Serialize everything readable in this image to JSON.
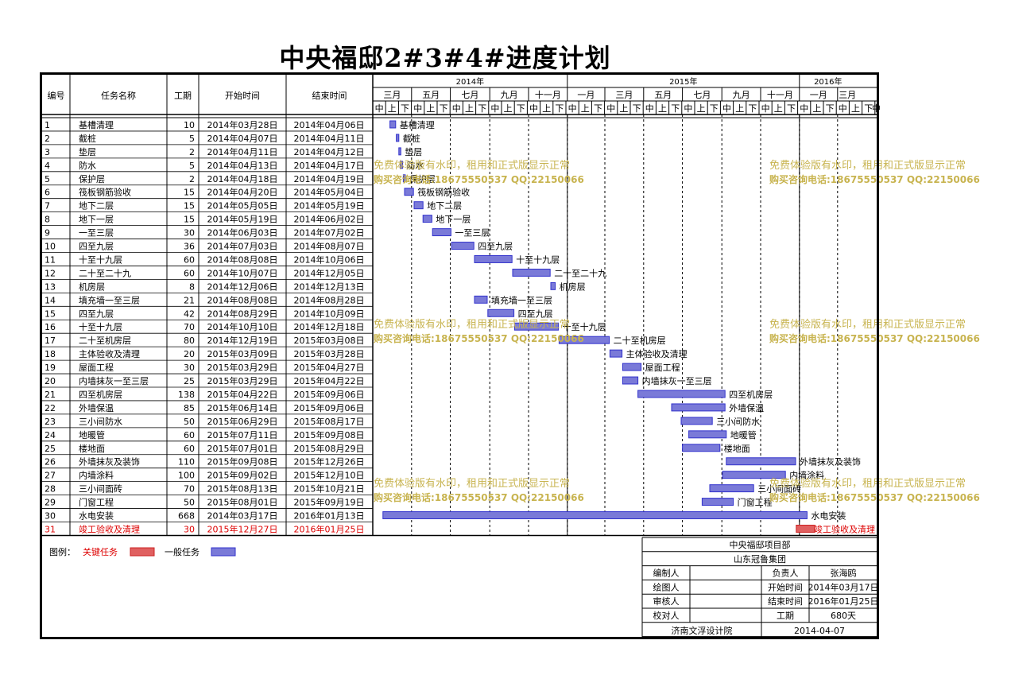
{
  "title": "中央福邸2#3#4#进度计划",
  "headers": {
    "id": "编号",
    "name": "任务名称",
    "dur": "工期",
    "start": "开始时间",
    "end": "结束时间"
  },
  "years": [
    "2014年",
    "2015年",
    "2016年"
  ],
  "months": [
    "三月",
    "五月",
    "七月",
    "九月",
    "十一月",
    "一月",
    "三月",
    "五月",
    "七月",
    "九月",
    "十一月",
    "一月",
    "三月"
  ],
  "halves": [
    "中",
    "上",
    "下"
  ],
  "chart_data": {
    "type": "gantt",
    "x_axis": {
      "type": "date",
      "start": "2014-03-01",
      "end": "2016-03-31"
    },
    "tasks": [
      {
        "id": "1",
        "name": "基槽清理",
        "duration": 10,
        "start": "2014年03月28日",
        "end": "2014年04月06日",
        "s": "2014-03-28",
        "e": "2014-04-06",
        "critical": false
      },
      {
        "id": "2",
        "name": "截桩",
        "duration": 5,
        "start": "2014年04月07日",
        "end": "2014年04月11日",
        "s": "2014-04-07",
        "e": "2014-04-11",
        "critical": false
      },
      {
        "id": "3",
        "name": "垫层",
        "duration": 2,
        "start": "2014年04月11日",
        "end": "2014年04月12日",
        "s": "2014-04-11",
        "e": "2014-04-12",
        "critical": false
      },
      {
        "id": "4",
        "name": "防水",
        "duration": 5,
        "start": "2014年04月13日",
        "end": "2014年04月17日",
        "s": "2014-04-13",
        "e": "2014-04-17",
        "critical": false
      },
      {
        "id": "5",
        "name": "保护层",
        "duration": 2,
        "start": "2014年04月18日",
        "end": "2014年04月19日",
        "s": "2014-04-18",
        "e": "2014-04-19",
        "critical": false
      },
      {
        "id": "6",
        "name": "筏板钢筋验收",
        "duration": 15,
        "start": "2014年04月20日",
        "end": "2014年05月04日",
        "s": "2014-04-20",
        "e": "2014-05-04",
        "critical": false
      },
      {
        "id": "7",
        "name": "地下二层",
        "duration": 15,
        "start": "2014年05月05日",
        "end": "2014年05月19日",
        "s": "2014-05-05",
        "e": "2014-05-19",
        "critical": false
      },
      {
        "id": "8",
        "name": "地下一层",
        "duration": 15,
        "start": "2014年05月19日",
        "end": "2014年06月02日",
        "s": "2014-05-19",
        "e": "2014-06-02",
        "critical": false
      },
      {
        "id": "9",
        "name": "一至三层",
        "duration": 30,
        "start": "2014年06月03日",
        "end": "2014年07月02日",
        "s": "2014-06-03",
        "e": "2014-07-02",
        "critical": false
      },
      {
        "id": "10",
        "name": "四至九层",
        "duration": 36,
        "start": "2014年07月03日",
        "end": "2014年08月07日",
        "s": "2014-07-03",
        "e": "2014-08-07",
        "critical": false
      },
      {
        "id": "11",
        "name": "十至十九层",
        "duration": 60,
        "start": "2014年08月08日",
        "end": "2014年10月06日",
        "s": "2014-08-08",
        "e": "2014-10-06",
        "critical": false
      },
      {
        "id": "12",
        "name": "二十至二十九",
        "duration": 60,
        "start": "2014年10月07日",
        "end": "2014年12月05日",
        "s": "2014-10-07",
        "e": "2014-12-05",
        "critical": false
      },
      {
        "id": "13",
        "name": "机房层",
        "duration": 8,
        "start": "2014年12月06日",
        "end": "2014年12月13日",
        "s": "2014-12-06",
        "e": "2014-12-13",
        "critical": false
      },
      {
        "id": "14",
        "name": "填充墙一至三层",
        "duration": 21,
        "start": "2014年08月08日",
        "end": "2014年08月28日",
        "s": "2014-08-08",
        "e": "2014-08-28",
        "critical": false
      },
      {
        "id": "15",
        "name": "四至九层",
        "duration": 42,
        "start": "2014年08月29日",
        "end": "2014年10月09日",
        "s": "2014-08-29",
        "e": "2014-10-09",
        "critical": false
      },
      {
        "id": "16",
        "name": "十至十九层",
        "duration": 70,
        "start": "2014年10月10日",
        "end": "2014年12月18日",
        "s": "2014-10-10",
        "e": "2014-12-18",
        "critical": false
      },
      {
        "id": "17",
        "name": "二十至机房层",
        "duration": 80,
        "start": "2014年12月19日",
        "end": "2015年03月08日",
        "s": "2014-12-19",
        "e": "2015-03-08",
        "critical": false
      },
      {
        "id": "18",
        "name": "主体验收及清理",
        "duration": 20,
        "start": "2015年03月09日",
        "end": "2015年03月28日",
        "s": "2015-03-09",
        "e": "2015-03-28",
        "critical": false
      },
      {
        "id": "19",
        "name": "屋面工程",
        "duration": 30,
        "start": "2015年03月29日",
        "end": "2015年04月27日",
        "s": "2015-03-29",
        "e": "2015-04-27",
        "critical": false
      },
      {
        "id": "20",
        "name": "内墙抹灰一至三层",
        "duration": 25,
        "start": "2015年03月29日",
        "end": "2015年04月22日",
        "s": "2015-03-29",
        "e": "2015-04-22",
        "critical": false
      },
      {
        "id": "21",
        "name": "四至机房层",
        "duration": 138,
        "start": "2015年04月22日",
        "end": "2015年09月06日",
        "s": "2015-04-22",
        "e": "2015-09-06",
        "critical": false
      },
      {
        "id": "22",
        "name": "外墙保温",
        "duration": 85,
        "start": "2015年06月14日",
        "end": "2015年09月06日",
        "s": "2015-06-14",
        "e": "2015-09-06",
        "critical": false
      },
      {
        "id": "23",
        "name": "三小间防水",
        "duration": 50,
        "start": "2015年06月29日",
        "end": "2015年08月17日",
        "s": "2015-06-29",
        "e": "2015-08-17",
        "critical": false
      },
      {
        "id": "24",
        "name": "地暖管",
        "duration": 60,
        "start": "2015年07月11日",
        "end": "2015年09月08日",
        "s": "2015-07-11",
        "e": "2015-09-08",
        "critical": false
      },
      {
        "id": "25",
        "name": "楼地面",
        "duration": 60,
        "start": "2015年07月01日",
        "end": "2015年08月29日",
        "s": "2015-07-01",
        "e": "2015-08-29",
        "critical": false
      },
      {
        "id": "26",
        "name": "外墙抹灰及装饰",
        "duration": 110,
        "start": "2015年09月08日",
        "end": "2015年12月26日",
        "s": "2015-09-08",
        "e": "2015-12-26",
        "critical": false
      },
      {
        "id": "27",
        "name": "内墙涂料",
        "duration": 100,
        "start": "2015年09月02日",
        "end": "2015年12月10日",
        "s": "2015-09-02",
        "e": "2015-12-10",
        "critical": false
      },
      {
        "id": "28",
        "name": "三小间面砖",
        "duration": 70,
        "start": "2015年08月13日",
        "end": "2015年10月21日",
        "s": "2015-08-13",
        "e": "2015-10-21",
        "critical": false
      },
      {
        "id": "29",
        "name": "门窗工程",
        "duration": 50,
        "start": "2015年08月01日",
        "end": "2015年09月19日",
        "s": "2015-08-01",
        "e": "2015-09-19",
        "critical": false
      },
      {
        "id": "30",
        "name": "水电安装",
        "duration": 668,
        "start": "2014年03月17日",
        "end": "2016年01月13日",
        "s": "2014-03-17",
        "e": "2016-01-13",
        "critical": false
      },
      {
        "id": "31",
        "name": "竣工验收及清理",
        "duration": 30,
        "start": "2015年12月27日",
        "end": "2016年01月25日",
        "s": "2015-12-27",
        "e": "2016-01-25",
        "critical": true
      }
    ]
  },
  "legend": {
    "label": "图例：",
    "critical": "关键任务",
    "normal": "一般任务"
  },
  "colors": {
    "normal": "#3333cc",
    "normal_fill": "#7a7ad8",
    "critical": "#cc2222",
    "critical_fill": "#e06060",
    "critical_text": "#dd0000",
    "watermark": "#c8b450",
    "grid": "#000000"
  },
  "info": {
    "org": "中央福邸项目部",
    "company": "山东冠鲁集团",
    "rows": [
      {
        "k1": "编制人",
        "v1": "",
        "k2": "负责人",
        "v2": "张海鸥"
      },
      {
        "k1": "绘图人",
        "v1": "",
        "k2": "开始时间",
        "v2": "2014年03月17日"
      },
      {
        "k1": "审核人",
        "v1": "",
        "k2": "结束时间",
        "v2": "2016年01月25日"
      },
      {
        "k1": "校对人",
        "v1": "",
        "k2": "工期",
        "v2": "680天"
      }
    ],
    "footer_left": "济南文浮设计院",
    "footer_right": "2014-04-07"
  },
  "watermark": {
    "line1": "免费体验版有水印，租用和正式版显示正常",
    "line2": "购买咨询电话:18675550537 QQ:22150066"
  }
}
